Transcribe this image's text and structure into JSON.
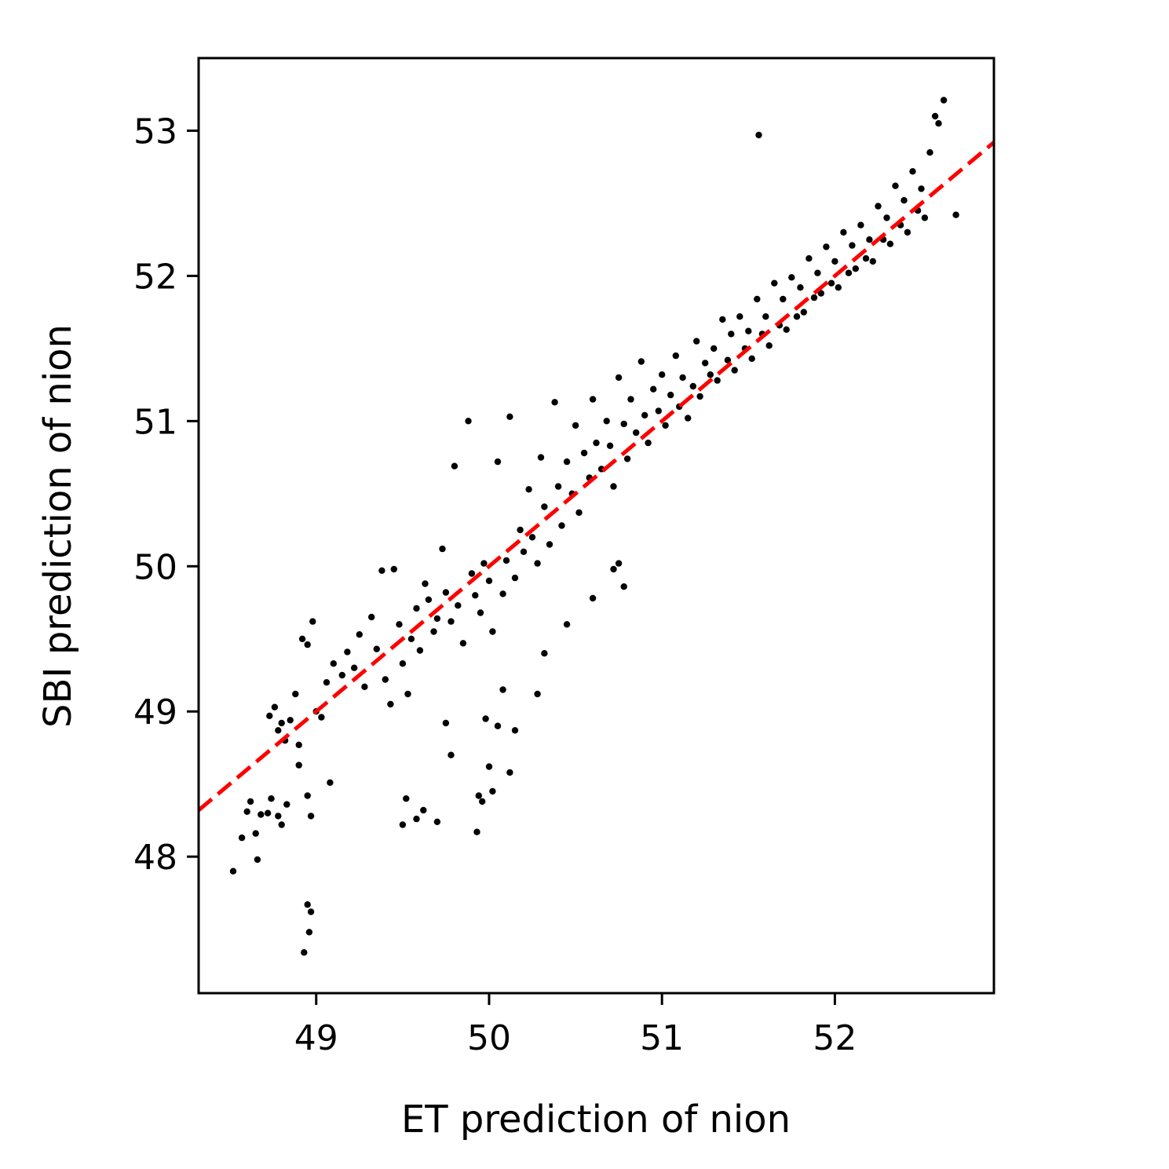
{
  "chart_data": {
    "type": "scatter",
    "title": "",
    "xlabel": "ET prediction of nion",
    "ylabel": "SBI prediction of nion",
    "xlim": [
      48.32,
      52.92
    ],
    "ylim": [
      47.06,
      53.5
    ],
    "xticks": [
      49,
      50,
      51,
      52
    ],
    "yticks": [
      48,
      49,
      50,
      51,
      52,
      53
    ],
    "xtick_labels": [
      "49",
      "50",
      "51",
      "52"
    ],
    "ytick_labels": [
      "48",
      "49",
      "50",
      "51",
      "52",
      "53"
    ],
    "grid": false,
    "legend": "none",
    "colors": {
      "points": "#000000",
      "reference_line": "#ff0000"
    },
    "reference_line": {
      "style": "dashed",
      "slope": 1,
      "intercept": 0,
      "description": "y = x"
    },
    "series": [
      {
        "points": [
          [
            48.52,
            47.9
          ],
          [
            48.93,
            47.34
          ],
          [
            48.95,
            47.67
          ],
          [
            48.96,
            47.48
          ],
          [
            48.97,
            47.62
          ],
          [
            48.57,
            48.13
          ],
          [
            48.6,
            48.31
          ],
          [
            48.62,
            48.38
          ],
          [
            48.65,
            48.16
          ],
          [
            48.66,
            47.98
          ],
          [
            48.68,
            48.29
          ],
          [
            48.72,
            48.3
          ],
          [
            48.74,
            48.4
          ],
          [
            48.78,
            48.28
          ],
          [
            48.8,
            48.22
          ],
          [
            48.83,
            48.36
          ],
          [
            48.9,
            48.63
          ],
          [
            48.95,
            48.42
          ],
          [
            48.97,
            48.28
          ],
          [
            49.08,
            48.51
          ],
          [
            48.73,
            48.97
          ],
          [
            48.76,
            49.03
          ],
          [
            48.78,
            48.87
          ],
          [
            48.8,
            48.92
          ],
          [
            48.82,
            48.8
          ],
          [
            48.85,
            48.94
          ],
          [
            48.88,
            49.12
          ],
          [
            48.9,
            48.77
          ],
          [
            48.92,
            49.5
          ],
          [
            48.95,
            49.46
          ],
          [
            48.98,
            49.62
          ],
          [
            49.0,
            49.0
          ],
          [
            49.03,
            48.96
          ],
          [
            49.06,
            49.2
          ],
          [
            49.1,
            49.33
          ],
          [
            49.15,
            49.25
          ],
          [
            49.18,
            49.41
          ],
          [
            49.22,
            49.3
          ],
          [
            49.25,
            49.53
          ],
          [
            49.28,
            49.17
          ],
          [
            49.32,
            49.65
          ],
          [
            49.35,
            49.43
          ],
          [
            49.38,
            49.97
          ],
          [
            49.4,
            49.22
          ],
          [
            49.43,
            49.05
          ],
          [
            49.45,
            49.98
          ],
          [
            49.48,
            49.6
          ],
          [
            49.5,
            49.33
          ],
          [
            49.53,
            49.12
          ],
          [
            49.55,
            49.5
          ],
          [
            49.58,
            49.71
          ],
          [
            49.6,
            49.42
          ],
          [
            49.63,
            49.88
          ],
          [
            49.65,
            49.77
          ],
          [
            49.68,
            49.55
          ],
          [
            49.7,
            49.64
          ],
          [
            49.73,
            50.12
          ],
          [
            49.75,
            49.82
          ],
          [
            49.78,
            49.62
          ],
          [
            49.8,
            50.69
          ],
          [
            49.82,
            49.73
          ],
          [
            49.85,
            49.47
          ],
          [
            49.88,
            51.0
          ],
          [
            49.9,
            49.95
          ],
          [
            49.92,
            49.8
          ],
          [
            49.95,
            49.68
          ],
          [
            49.97,
            50.02
          ],
          [
            50.0,
            49.9
          ],
          [
            50.02,
            49.55
          ],
          [
            50.05,
            50.72
          ],
          [
            50.08,
            49.81
          ],
          [
            50.1,
            50.04
          ],
          [
            50.12,
            51.03
          ],
          [
            50.15,
            49.92
          ],
          [
            50.18,
            50.25
          ],
          [
            50.2,
            50.1
          ],
          [
            50.23,
            50.53
          ],
          [
            50.25,
            50.2
          ],
          [
            50.28,
            50.02
          ],
          [
            50.3,
            50.75
          ],
          [
            50.32,
            50.41
          ],
          [
            50.35,
            50.15
          ],
          [
            50.38,
            51.13
          ],
          [
            50.4,
            50.55
          ],
          [
            50.42,
            50.28
          ],
          [
            50.45,
            50.72
          ],
          [
            50.48,
            50.5
          ],
          [
            50.5,
            50.97
          ],
          [
            50.52,
            50.37
          ],
          [
            50.55,
            50.78
          ],
          [
            50.58,
            50.61
          ],
          [
            50.6,
            51.15
          ],
          [
            50.62,
            50.85
          ],
          [
            50.65,
            50.67
          ],
          [
            50.68,
            51.0
          ],
          [
            50.7,
            50.83
          ],
          [
            50.72,
            50.55
          ],
          [
            50.75,
            51.3
          ],
          [
            50.78,
            50.98
          ],
          [
            50.8,
            50.74
          ],
          [
            50.82,
            51.15
          ],
          [
            50.85,
            50.92
          ],
          [
            50.88,
            51.41
          ],
          [
            50.9,
            51.04
          ],
          [
            50.92,
            50.85
          ],
          [
            50.95,
            51.22
          ],
          [
            50.98,
            51.07
          ],
          [
            51.0,
            51.32
          ],
          [
            51.02,
            50.97
          ],
          [
            51.05,
            51.18
          ],
          [
            51.08,
            51.45
          ],
          [
            51.1,
            51.1
          ],
          [
            51.12,
            51.3
          ],
          [
            51.15,
            51.02
          ],
          [
            51.18,
            51.24
          ],
          [
            51.2,
            51.55
          ],
          [
            51.22,
            51.17
          ],
          [
            51.25,
            51.4
          ],
          [
            51.28,
            51.32
          ],
          [
            51.3,
            51.5
          ],
          [
            51.32,
            51.28
          ],
          [
            51.35,
            51.7
          ],
          [
            51.38,
            51.42
          ],
          [
            51.4,
            51.6
          ],
          [
            51.42,
            51.35
          ],
          [
            51.45,
            51.72
          ],
          [
            51.48,
            51.5
          ],
          [
            51.5,
            51.62
          ],
          [
            51.52,
            51.43
          ],
          [
            51.55,
            51.84
          ],
          [
            51.58,
            51.6
          ],
          [
            51.6,
            51.72
          ],
          [
            51.62,
            51.52
          ],
          [
            51.65,
            51.95
          ],
          [
            51.68,
            51.66
          ],
          [
            51.7,
            51.84
          ],
          [
            51.72,
            51.63
          ],
          [
            51.75,
            51.99
          ],
          [
            51.78,
            51.72
          ],
          [
            51.8,
            51.92
          ],
          [
            51.82,
            51.75
          ],
          [
            51.85,
            52.12
          ],
          [
            51.88,
            51.85
          ],
          [
            51.9,
            52.02
          ],
          [
            51.92,
            51.88
          ],
          [
            51.95,
            52.2
          ],
          [
            51.98,
            51.95
          ],
          [
            52.0,
            52.1
          ],
          [
            52.02,
            51.92
          ],
          [
            52.05,
            52.3
          ],
          [
            52.08,
            52.02
          ],
          [
            52.1,
            52.21
          ],
          [
            52.12,
            52.05
          ],
          [
            52.15,
            52.35
          ],
          [
            52.18,
            52.12
          ],
          [
            52.2,
            52.25
          ],
          [
            52.22,
            52.1
          ],
          [
            52.25,
            52.48
          ],
          [
            52.28,
            52.25
          ],
          [
            52.3,
            52.4
          ],
          [
            52.32,
            52.22
          ],
          [
            52.35,
            52.62
          ],
          [
            52.38,
            52.35
          ],
          [
            52.4,
            52.52
          ],
          [
            52.42,
            52.3
          ],
          [
            52.45,
            52.72
          ],
          [
            52.48,
            52.45
          ],
          [
            52.5,
            52.6
          ],
          [
            52.52,
            52.4
          ],
          [
            52.55,
            52.85
          ],
          [
            52.58,
            53.1
          ],
          [
            52.6,
            53.05
          ],
          [
            52.63,
            53.21
          ],
          [
            52.7,
            52.42
          ],
          [
            51.56,
            52.97
          ],
          [
            49.5,
            48.22
          ],
          [
            49.52,
            48.4
          ],
          [
            49.58,
            48.26
          ],
          [
            49.62,
            48.32
          ],
          [
            49.7,
            48.24
          ],
          [
            49.75,
            48.92
          ],
          [
            49.78,
            48.7
          ],
          [
            49.93,
            48.17
          ],
          [
            49.94,
            48.42
          ],
          [
            49.96,
            48.38
          ],
          [
            49.98,
            48.95
          ],
          [
            50.0,
            48.62
          ],
          [
            50.02,
            48.45
          ],
          [
            50.05,
            48.9
          ],
          [
            50.08,
            49.15
          ],
          [
            50.12,
            48.58
          ],
          [
            50.15,
            48.87
          ],
          [
            50.28,
            49.12
          ],
          [
            50.32,
            49.4
          ],
          [
            50.45,
            49.6
          ],
          [
            50.6,
            49.78
          ],
          [
            50.72,
            49.98
          ],
          [
            50.75,
            50.02
          ],
          [
            50.78,
            49.86
          ]
        ]
      }
    ]
  }
}
